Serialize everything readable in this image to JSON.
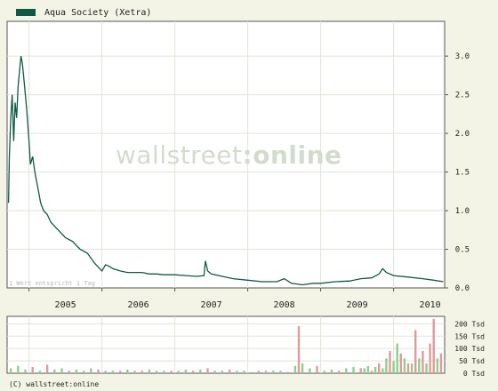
{
  "legend": {
    "label": "Aqua Society (Xetra)",
    "color": "#0f5a44"
  },
  "watermark": {
    "part1": "wallstreet",
    "part2": ":online"
  },
  "note": "1 Wert entspricht 1 Tag",
  "copyright": "(C) wallstreet:online",
  "colors": {
    "background": "#f4f4e6",
    "plot_background": "#ffffff",
    "grid": "#e3e3d6",
    "line": "#0f5a44",
    "volume_up": "#8fcf8a",
    "volume_down": "#e19a9a"
  },
  "chart_data": [
    {
      "type": "line",
      "title": "",
      "series": [
        {
          "name": "Aqua Society (Xetra)",
          "x": [
            2004.72,
            2004.73,
            2004.75,
            2004.77,
            2004.79,
            2004.81,
            2004.83,
            2004.85,
            2004.87,
            2004.89,
            2004.91,
            2004.93,
            2004.95,
            2004.97,
            2005.0,
            2005.02,
            2005.05,
            2005.08,
            2005.1,
            2005.13,
            2005.16,
            2005.2,
            2005.25,
            2005.3,
            2005.35,
            2005.4,
            2005.5,
            2005.6,
            2005.7,
            2005.8,
            2005.9,
            2006.0,
            2006.05,
            2006.1,
            2006.15,
            2006.25,
            2006.35,
            2006.45,
            2006.55,
            2006.65,
            2006.75,
            2006.85,
            2007.0,
            2007.15,
            2007.3,
            2007.4,
            2007.42,
            2007.45,
            2007.5,
            2007.65,
            2007.8,
            2008.0,
            2008.2,
            2008.4,
            2008.5,
            2008.6,
            2008.75,
            2008.9,
            2009.0,
            2009.2,
            2009.4,
            2009.55,
            2009.7,
            2009.8,
            2009.85,
            2009.9,
            2010.0,
            2010.2,
            2010.4,
            2010.55,
            2010.68
          ],
          "y": [
            1.1,
            1.7,
            2.2,
            2.5,
            1.9,
            2.4,
            2.2,
            2.6,
            2.8,
            3.0,
            2.9,
            2.7,
            2.5,
            2.3,
            1.9,
            1.6,
            1.7,
            1.5,
            1.4,
            1.25,
            1.1,
            1.0,
            0.95,
            0.85,
            0.8,
            0.75,
            0.65,
            0.6,
            0.5,
            0.45,
            0.32,
            0.22,
            0.3,
            0.28,
            0.25,
            0.22,
            0.2,
            0.2,
            0.2,
            0.18,
            0.18,
            0.17,
            0.17,
            0.16,
            0.15,
            0.16,
            0.35,
            0.22,
            0.18,
            0.15,
            0.12,
            0.1,
            0.08,
            0.08,
            0.12,
            0.06,
            0.04,
            0.06,
            0.06,
            0.08,
            0.09,
            0.12,
            0.13,
            0.18,
            0.25,
            0.2,
            0.16,
            0.14,
            0.12,
            0.1,
            0.08
          ]
        }
      ],
      "x_tick_labels": [
        "2005",
        "2006",
        "2007",
        "2008",
        "2009",
        "2010"
      ],
      "x_tick_values": [
        2005,
        2006,
        2007,
        2008,
        2009,
        2010
      ],
      "xlim": [
        2004.7,
        2010.7
      ],
      "y_tick_labels": [
        "0.0",
        "0.5",
        "1.0",
        "1.5",
        "2.0",
        "2.5",
        "3.0"
      ],
      "y_tick_values": [
        0,
        0.5,
        1.0,
        1.5,
        2.0,
        2.5,
        3.0
      ],
      "ylim": [
        0,
        3.45
      ],
      "grid": true,
      "legend": "top-left",
      "axis_position": "right"
    },
    {
      "type": "bar",
      "title": "",
      "y_tick_labels": [
        "0 Tsd",
        "50 Tsd",
        "100 Tsd",
        "150 Tsd",
        "200 Tsd"
      ],
      "y_tick_values": [
        0,
        50,
        100,
        150,
        200
      ],
      "ylim": [
        0,
        230
      ],
      "grid": true,
      "axis_position": "right",
      "series": [
        {
          "name": "",
          "x": [
            2004.75,
            2004.85,
            2004.95,
            2005.05,
            2005.15,
            2005.25,
            2005.35,
            2005.45,
            2005.55,
            2005.65,
            2005.75,
            2005.85,
            2005.95,
            2006.05,
            2006.15,
            2006.25,
            2006.35,
            2006.45,
            2006.55,
            2006.65,
            2006.75,
            2006.85,
            2006.95,
            2007.05,
            2007.15,
            2007.25,
            2007.35,
            2007.45,
            2007.55,
            2007.65,
            2007.75,
            2007.85,
            2007.95,
            2008.05,
            2008.15,
            2008.25,
            2008.35,
            2008.45,
            2008.55,
            2008.65,
            2008.7,
            2008.75,
            2008.85,
            2008.95,
            2009.05,
            2009.15,
            2009.25,
            2009.35,
            2009.45,
            2009.55,
            2009.6,
            2009.65,
            2009.7,
            2009.75,
            2009.8,
            2009.85,
            2009.9,
            2009.95,
            2010.0,
            2010.05,
            2010.1,
            2010.15,
            2010.2,
            2010.25,
            2010.3,
            2010.35,
            2010.4,
            2010.45,
            2010.5,
            2010.55,
            2010.6,
            2010.65
          ],
          "values": [
            20,
            30,
            15,
            25,
            10,
            35,
            15,
            20,
            10,
            15,
            10,
            20,
            15,
            10,
            10,
            10,
            15,
            10,
            10,
            15,
            10,
            10,
            10,
            10,
            15,
            10,
            15,
            20,
            10,
            10,
            15,
            10,
            10,
            5,
            10,
            10,
            10,
            10,
            5,
            30,
            190,
            40,
            20,
            30,
            10,
            15,
            10,
            20,
            25,
            20,
            20,
            30,
            10,
            25,
            40,
            20,
            60,
            90,
            50,
            120,
            80,
            60,
            40,
            40,
            175,
            60,
            90,
            40,
            120,
            220,
            60,
            80
          ],
          "direction": [
            "up",
            "up",
            "up",
            "down",
            "up",
            "down",
            "up",
            "up",
            "down",
            "up",
            "up",
            "up",
            "down",
            "up",
            "up",
            "down",
            "up",
            "up",
            "down",
            "up",
            "up",
            "up",
            "down",
            "up",
            "up",
            "down",
            "up",
            "down",
            "up",
            "up",
            "down",
            "up",
            "up",
            "up",
            "down",
            "up",
            "up",
            "up",
            "down",
            "up",
            "down",
            "up",
            "up",
            "down",
            "up",
            "up",
            "down",
            "up",
            "up",
            "down",
            "up",
            "up",
            "down",
            "up",
            "down",
            "up",
            "up",
            "down",
            "up",
            "up",
            "down",
            "up",
            "down",
            "up",
            "down",
            "up",
            "down",
            "up",
            "down",
            "down",
            "up",
            "down"
          ]
        }
      ]
    }
  ]
}
